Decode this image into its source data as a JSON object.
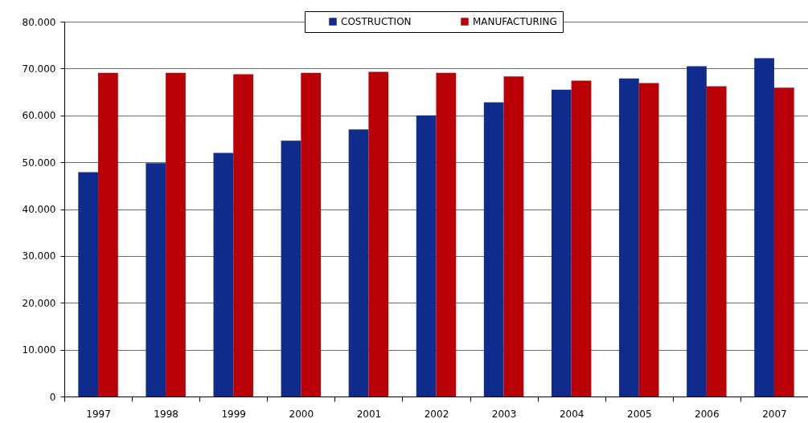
{
  "chart_data": {
    "type": "bar",
    "categories": [
      "1997",
      "1998",
      "1999",
      "2000",
      "2001",
      "2002",
      "2003",
      "2004",
      "2005",
      "2006",
      "2007"
    ],
    "series": [
      {
        "name": "COSTRUCTION",
        "color": "#0f2b8b",
        "values": [
          47900,
          49800,
          52000,
          54600,
          57000,
          60000,
          62800,
          65500,
          67900,
          70500,
          72200
        ]
      },
      {
        "name": "MANUFACTURING",
        "color": "#b80006",
        "values": [
          69100,
          69100,
          68800,
          69100,
          69300,
          69100,
          68300,
          67400,
          66900,
          66200,
          65900
        ]
      }
    ],
    "ylim": [
      0,
      80000
    ],
    "yticks": [
      0,
      {
        "value": 10000,
        "label": "10.000"
      },
      {
        "value": 20000,
        "label": "20.000"
      },
      {
        "value": 30000,
        "label": "30.000"
      },
      {
        "value": 40000,
        "label": "40.000"
      },
      {
        "value": 50000,
        "label": "50.000"
      },
      {
        "value": 60000,
        "label": "60.000"
      },
      {
        "value": 70000,
        "label": "70.000"
      },
      {
        "value": 80000,
        "label": "80.000"
      }
    ],
    "grid": "y",
    "legend": "top"
  }
}
